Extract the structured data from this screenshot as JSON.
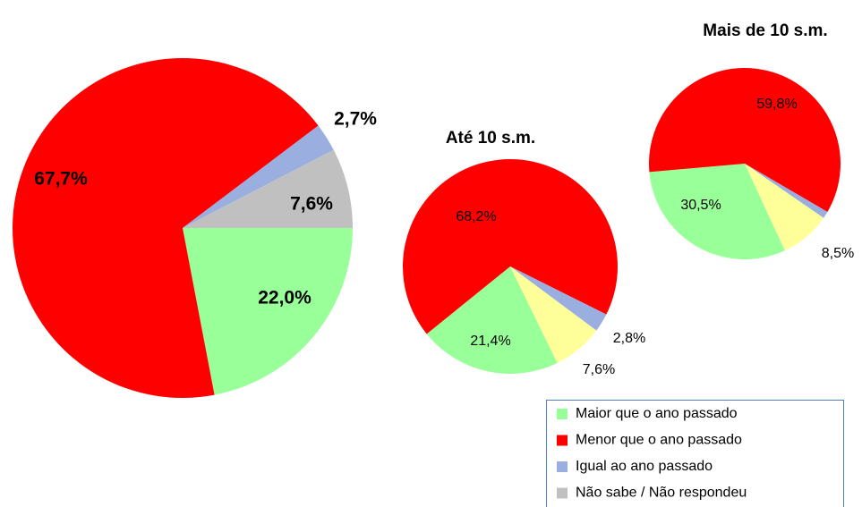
{
  "chart_data": [
    {
      "type": "pie",
      "categories": [
        "Maior que o ano passado",
        "Menor que o ano passado",
        "Igual ao ano passado",
        "Não sabe / Não respondeu"
      ],
      "values": [
        22.0,
        67.7,
        2.7,
        7.6
      ],
      "value_labels": [
        "22,0%",
        "67,7%",
        "2,7%",
        "7,6%"
      ],
      "colors": [
        "#99ff99",
        "#ff0000",
        "#9aaee0",
        "#c0c0c0"
      ]
    },
    {
      "type": "pie",
      "title": "Até 10 s.m.",
      "values": [
        21.4,
        68.2,
        2.8,
        7.6
      ],
      "value_labels": [
        "21,4%",
        "68,2%",
        "2,8%",
        "7,6%"
      ],
      "colors": [
        "#99ff99",
        "#ff0000",
        "#9aaee0",
        "#ffff99"
      ]
    },
    {
      "type": "pie",
      "title": "Mais de 10 s.m.",
      "values": [
        30.5,
        59.8,
        1.2,
        8.5
      ],
      "value_labels": [
        "30,5%",
        "59,8%",
        null,
        "8,5%"
      ],
      "colors": [
        "#99ff99",
        "#ff0000",
        "#9aaee0",
        "#ffff99"
      ]
    }
  ]
}
